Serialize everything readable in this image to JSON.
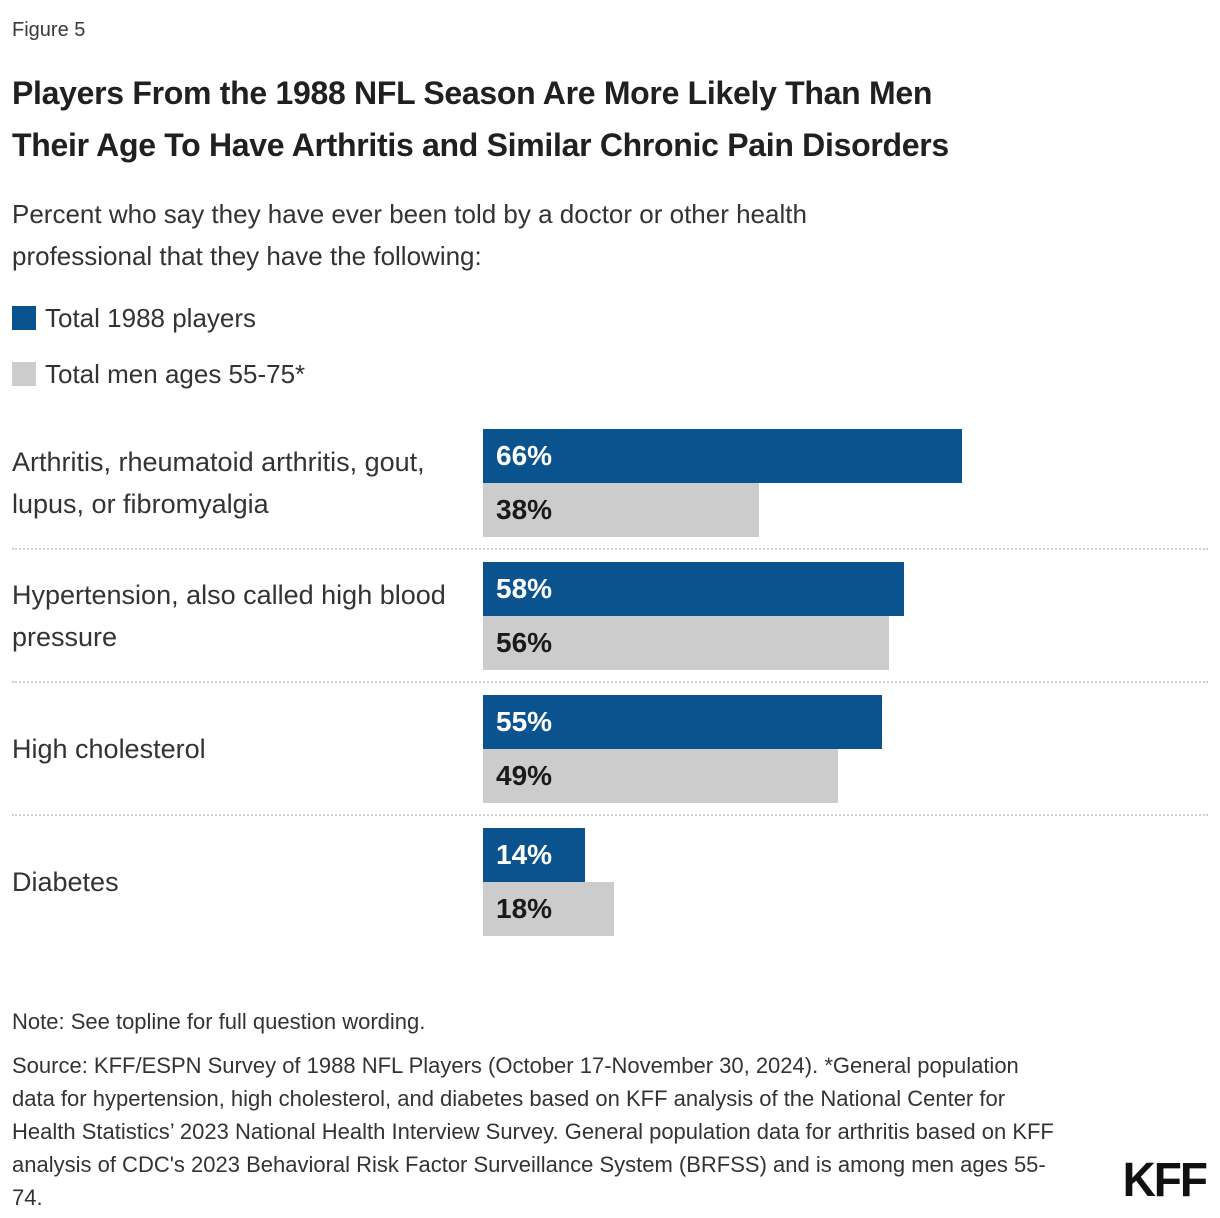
{
  "figure_label": "Figure 5",
  "title_lines": [
    "Players From the 1988 NFL Season Are More Likely Than Men",
    "Their Age To Have Arthritis and Similar Chronic Pain Disorders"
  ],
  "subtitle_lines": [
    "Percent who say they have ever been told by a doctor or other health",
    "professional that they have the following:"
  ],
  "legend": {
    "items": [
      {
        "label": "Total 1988 players",
        "color": "#0A538F"
      },
      {
        "label": "Total men ages 55-75*",
        "color": "#CCCCCC"
      }
    ]
  },
  "chart_data": {
    "type": "bar",
    "orientation": "horizontal",
    "value_unit": "%",
    "xlim": [
      0,
      100
    ],
    "grid": false,
    "legend_position": "top-left",
    "categories": [
      "Arthritis, rheumatoid arthritis, gout, lupus, or fibromyalgia",
      "Hypertension, also called high blood pressure",
      "High cholesterol",
      "Diabetes"
    ],
    "series": [
      {
        "name": "Total 1988 players",
        "color": "#0A538F",
        "values": [
          66,
          58,
          55,
          14
        ]
      },
      {
        "name": "Total men ages 55-75*",
        "color": "#CCCCCC",
        "values": [
          38,
          56,
          49,
          18
        ]
      }
    ],
    "rows": [
      {
        "category": "Arthritis, rheumatoid arthritis, gout, lupus, or fibromyalgia",
        "players": {
          "value": 66,
          "label": "66%"
        },
        "men": {
          "value": 38,
          "label": "38%"
        }
      },
      {
        "category": "Hypertension, also called high blood pressure",
        "players": {
          "value": 58,
          "label": "58%"
        },
        "men": {
          "value": 56,
          "label": "56%"
        }
      },
      {
        "category": "High cholesterol",
        "players": {
          "value": 55,
          "label": "55%"
        },
        "men": {
          "value": 49,
          "label": "49%"
        }
      },
      {
        "category": "Diabetes",
        "players": {
          "value": 14,
          "label": "14%"
        },
        "men": {
          "value": 18,
          "label": "18%"
        }
      }
    ]
  },
  "footer": {
    "note": "Note: See topline for full question wording.",
    "source": "Source: KFF/ESPN Survey of 1988 NFL Players (October 17-November 30, 2024). *General population data for hypertension, high cholesterol, and diabetes based on KFF analysis of the National Center for Health Statistics’ 2023 National Health Interview Survey. General population data for arthritis based on KFF analysis of CDC's 2023 Behavioral Risk Factor Surveillance System (BRFSS) and is among men ages 55-74.",
    "logo": "KFF"
  },
  "colors": {
    "players_bar": "#0A538F",
    "men_bar": "#CCCCCC",
    "title_text": "#202020",
    "body_text": "#333333",
    "separator": "#CFCFCF",
    "bar_label_on_players": "#FFFFFF",
    "bar_label_on_men": "#1A1A1A",
    "background": "#FFFFFF",
    "logo_text": "#111111"
  }
}
